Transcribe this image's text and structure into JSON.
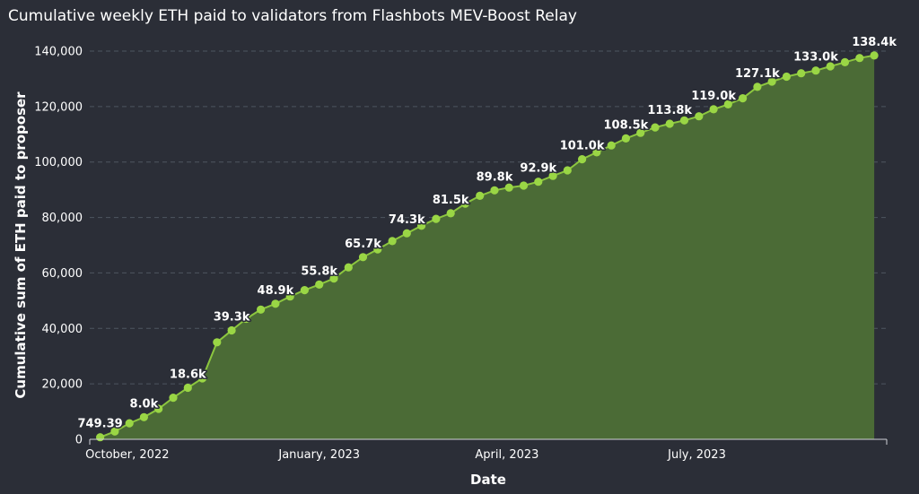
{
  "chart_data": {
    "type": "area",
    "title": "Cumulative weekly ETH paid to validators from Flashbots MEV-Boost Relay",
    "xlabel": "Date",
    "ylabel": "Cumulative sum of ETH paid to proposer",
    "xlim": [
      "2022-09-13",
      "2023-09-30"
    ],
    "ylim": [
      0,
      140000
    ],
    "y_ticks": [
      0,
      20000,
      40000,
      60000,
      80000,
      100000,
      120000,
      140000
    ],
    "y_tick_labels": [
      "0",
      "20,000",
      "40,000",
      "60,000",
      "80,000",
      "100,000",
      "120,000",
      "140,000"
    ],
    "x_ticks": [
      "2022-10-01",
      "2023-01-01",
      "2023-04-01",
      "2023-07-01"
    ],
    "x_tick_labels": [
      "October, 2022",
      "January, 2023",
      "April, 2023",
      "July, 2023"
    ],
    "grid": "horizontal dashed",
    "colors": {
      "line": "#8cc63f",
      "marker": "#9ad645",
      "fill": "#4b6b36",
      "grid": "#4e5660",
      "background": "#2b2e37"
    },
    "series": [
      {
        "x": [
          "2022-09-18",
          "2022-09-25",
          "2022-10-02",
          "2022-10-09",
          "2022-10-16",
          "2022-10-23",
          "2022-10-30",
          "2022-11-06",
          "2022-11-13",
          "2022-11-20",
          "2022-11-27",
          "2022-12-04",
          "2022-12-11",
          "2022-12-18",
          "2022-12-25",
          "2023-01-01",
          "2023-01-08",
          "2023-01-15",
          "2023-01-22",
          "2023-01-29",
          "2023-02-05",
          "2023-02-12",
          "2023-02-19",
          "2023-02-26",
          "2023-03-05",
          "2023-03-12",
          "2023-03-19",
          "2023-03-26",
          "2023-04-02",
          "2023-04-09",
          "2023-04-16",
          "2023-04-23",
          "2023-04-30",
          "2023-05-07",
          "2023-05-14",
          "2023-05-21",
          "2023-05-28",
          "2023-06-04",
          "2023-06-11",
          "2023-06-18",
          "2023-06-25",
          "2023-07-02",
          "2023-07-09",
          "2023-07-16",
          "2023-07-23",
          "2023-07-30",
          "2023-08-06",
          "2023-08-13",
          "2023-08-20",
          "2023-08-27",
          "2023-09-03",
          "2023-09-10",
          "2023-09-17",
          "2023-09-24"
        ],
        "values": [
          749.39,
          2800,
          5800,
          8000,
          11000,
          15000,
          18600,
          22000,
          35000,
          39300,
          43500,
          46800,
          48900,
          51500,
          53800,
          55800,
          58000,
          62000,
          65700,
          68500,
          71500,
          74300,
          77000,
          79500,
          81500,
          85000,
          87800,
          89800,
          90800,
          91500,
          92900,
          95000,
          97000,
          101000,
          103500,
          106000,
          108500,
          110500,
          112500,
          113800,
          115000,
          116500,
          119000,
          120800,
          123000,
          127100,
          129000,
          130800,
          132000,
          133000,
          134500,
          136000,
          137500,
          138400
        ]
      }
    ],
    "data_labels": [
      {
        "x": "2022-09-18",
        "y": 749.39,
        "text": "749.39"
      },
      {
        "x": "2022-10-09",
        "y": 8000,
        "text": "8.0k"
      },
      {
        "x": "2022-10-30",
        "y": 18600,
        "text": "18.6k"
      },
      {
        "x": "2022-11-20",
        "y": 39300,
        "text": "39.3k"
      },
      {
        "x": "2022-12-11",
        "y": 48900,
        "text": "48.9k"
      },
      {
        "x": "2023-01-01",
        "y": 55800,
        "text": "55.8k"
      },
      {
        "x": "2023-01-22",
        "y": 65700,
        "text": "65.7k"
      },
      {
        "x": "2023-02-12",
        "y": 74300,
        "text": "74.3k"
      },
      {
        "x": "2023-03-05",
        "y": 81500,
        "text": "81.5k"
      },
      {
        "x": "2023-03-26",
        "y": 89800,
        "text": "89.8k"
      },
      {
        "x": "2023-04-16",
        "y": 92900,
        "text": "92.9k"
      },
      {
        "x": "2023-05-07",
        "y": 101000,
        "text": "101.0k"
      },
      {
        "x": "2023-05-28",
        "y": 108500,
        "text": "108.5k"
      },
      {
        "x": "2023-06-18",
        "y": 113800,
        "text": "113.8k"
      },
      {
        "x": "2023-07-09",
        "y": 119000,
        "text": "119.0k"
      },
      {
        "x": "2023-07-30",
        "y": 127100,
        "text": "127.1k"
      },
      {
        "x": "2023-08-27",
        "y": 133000,
        "text": "133.0k"
      },
      {
        "x": "2023-09-24",
        "y": 138400,
        "text": "138.4k"
      }
    ]
  }
}
